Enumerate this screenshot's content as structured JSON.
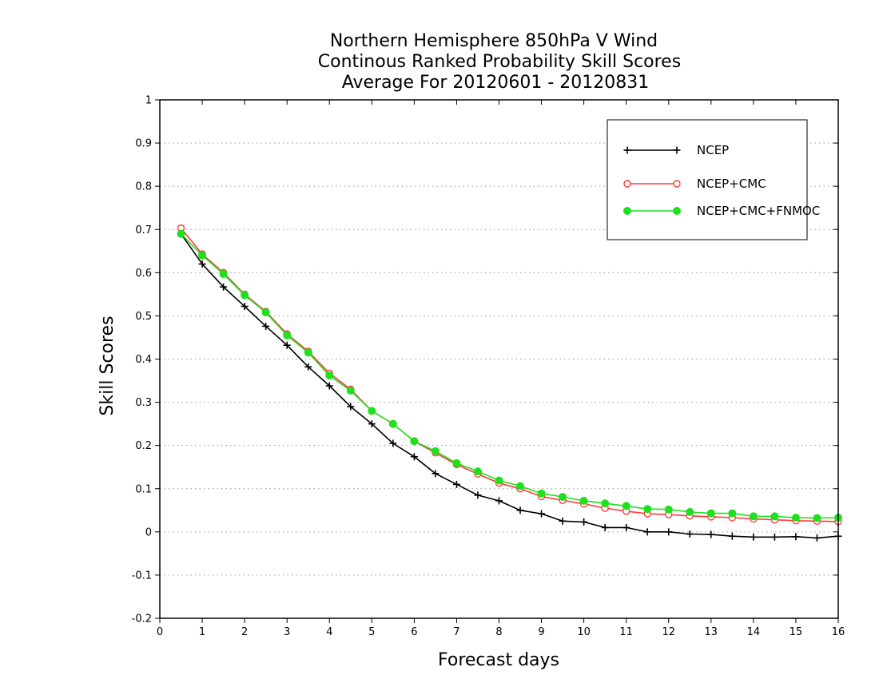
{
  "chart_data": {
    "type": "line",
    "title_lines": [
      "Northern Hemisphere 850hPa V Wind",
      "Continous Ranked Probability Skill Scores",
      "Average For 20120601 - 20120831"
    ],
    "xlabel": "Forecast days",
    "ylabel": "Skill Scores",
    "xlim": [
      0,
      16
    ],
    "ylim": [
      -0.2,
      1
    ],
    "xticks": [
      0,
      1,
      2,
      3,
      4,
      5,
      6,
      7,
      8,
      9,
      10,
      11,
      12,
      13,
      14,
      15,
      16
    ],
    "yticks": [
      -0.2,
      -0.1,
      0,
      0.1,
      0.2,
      0.3,
      0.4,
      0.5,
      0.6,
      0.7,
      0.8,
      0.9,
      1
    ],
    "ytick_labels": [
      "-0.2",
      "-0.1",
      "0",
      "0.1",
      "0.2",
      "0.3",
      "0.4",
      "0.5",
      "0.6",
      "0.7",
      "0.8",
      "0.9",
      "1"
    ],
    "grid": "horizontal dotted",
    "legend_position": "top-right",
    "x": [
      0.5,
      1,
      1.5,
      2,
      2.5,
      3,
      3.5,
      4,
      4.5,
      5,
      5.5,
      6,
      6.5,
      7,
      7.5,
      8,
      8.5,
      9,
      9.5,
      10,
      10.5,
      11,
      11.5,
      12,
      12.5,
      13,
      13.5,
      14,
      14.5,
      15,
      15.5,
      16
    ],
    "series": [
      {
        "name": "NCEP",
        "color": "#000000",
        "marker": "plus",
        "values": [
          0.69,
          0.62,
          0.567,
          0.522,
          0.476,
          0.432,
          0.382,
          0.338,
          0.29,
          0.25,
          0.205,
          0.174,
          0.135,
          0.11,
          0.085,
          0.072,
          0.05,
          0.042,
          0.025,
          0.023,
          0.01,
          0.01,
          0.0,
          0.0,
          -0.005,
          -0.006,
          -0.01,
          -0.012,
          -0.012,
          -0.011,
          -0.014,
          -0.01
        ]
      },
      {
        "name": "NCEP+CMC",
        "color": "#ff3b3b",
        "marker": "open-circle",
        "values": [
          0.703,
          0.643,
          0.6,
          0.55,
          0.51,
          0.458,
          0.418,
          0.367,
          0.33,
          0.28,
          0.25,
          0.21,
          0.183,
          0.156,
          0.134,
          0.113,
          0.1,
          0.082,
          0.073,
          0.065,
          0.055,
          0.048,
          0.042,
          0.04,
          0.037,
          0.035,
          0.033,
          0.03,
          0.028,
          0.026,
          0.025,
          0.024
        ]
      },
      {
        "name": "NCEP+CMC+FNMOC",
        "color": "#1ee01e",
        "marker": "filled-circle",
        "values": [
          0.69,
          0.64,
          0.597,
          0.548,
          0.508,
          0.455,
          0.415,
          0.362,
          0.327,
          0.28,
          0.25,
          0.21,
          0.187,
          0.159,
          0.14,
          0.119,
          0.106,
          0.089,
          0.081,
          0.072,
          0.066,
          0.06,
          0.053,
          0.052,
          0.046,
          0.043,
          0.043,
          0.036,
          0.036,
          0.033,
          0.032,
          0.033
        ]
      }
    ]
  }
}
